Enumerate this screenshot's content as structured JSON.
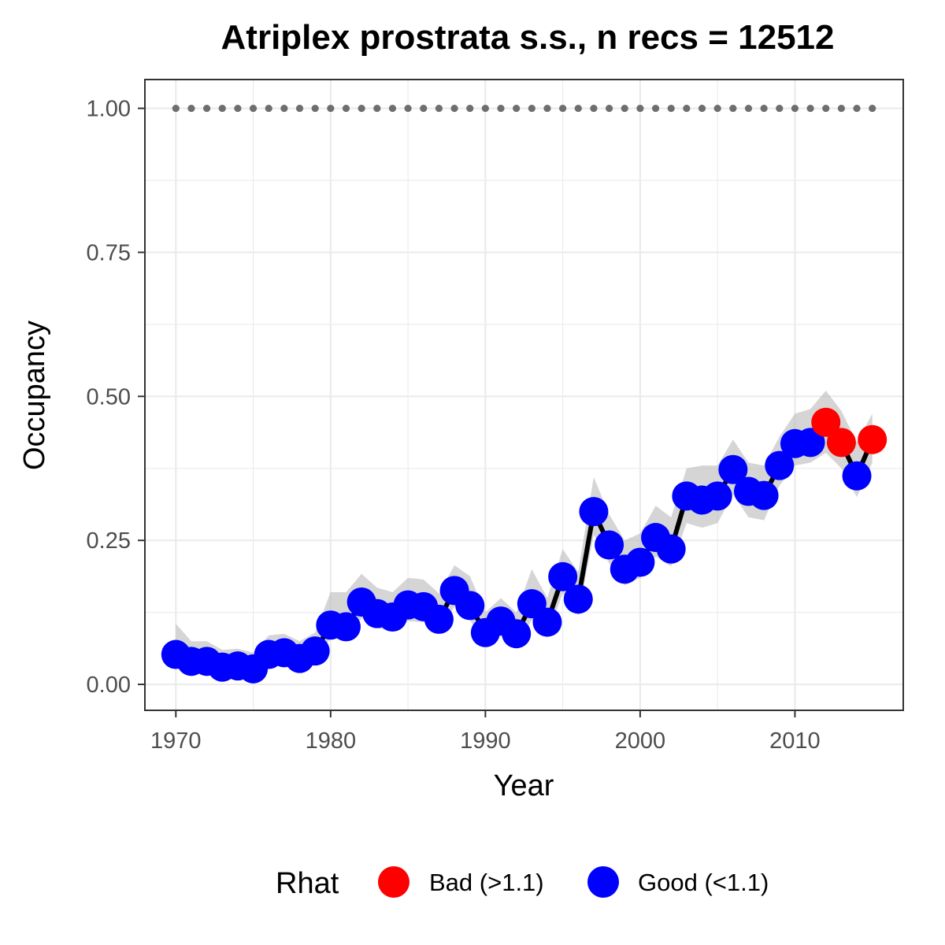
{
  "chart_data": {
    "type": "line",
    "title": "Atriplex prostrata s.s., n recs = 12512",
    "xlabel": "Year",
    "ylabel": "Occupancy",
    "xlim": [
      1968,
      2017
    ],
    "ylim": [
      -0.045,
      1.05
    ],
    "x_ticks": [
      1970,
      1980,
      1990,
      2000,
      2010
    ],
    "y_ticks": [
      0,
      0.25,
      0.5,
      0.75,
      1
    ],
    "x_tick_labels": [
      "1970",
      "1980",
      "1990",
      "2000",
      "2010"
    ],
    "y_tick_labels": [
      "0.00",
      "0.25",
      "0.50",
      "0.75",
      "1.00"
    ],
    "grid": true,
    "legend_position": "bottom",
    "legend": {
      "title": "Rhat",
      "entries": [
        {
          "label": "Bad (>1.1)",
          "color": "#ff0000"
        },
        {
          "label": "Good (<1.1)",
          "color": "#0000ff"
        }
      ]
    },
    "colors": {
      "bad": "#ff0000",
      "good": "#0000ff",
      "line": "#000000",
      "ribbon": "#bebebe",
      "reference": "#6e6e6e",
      "grid": "#ebebeb",
      "panel_border": "#333333"
    },
    "reference_line": {
      "y": 1.0,
      "style": "dotted"
    },
    "series": [
      {
        "x": [
          1970,
          1971,
          1972,
          1973,
          1974,
          1975,
          1976,
          1977,
          1978,
          1979,
          1980,
          1981,
          1982,
          1983,
          1984,
          1985,
          1986,
          1987,
          1988,
          1989,
          1990,
          1991,
          1992,
          1993,
          1994,
          1995,
          1996,
          1997,
          1998,
          1999,
          2000,
          2001,
          2002,
          2003,
          2004,
          2005,
          2006,
          2007,
          2008,
          2009,
          2010,
          2011,
          2012,
          2013,
          2014,
          2015
        ],
        "y": [
          0.052,
          0.04,
          0.04,
          0.03,
          0.032,
          0.027,
          0.052,
          0.055,
          0.045,
          0.058,
          0.103,
          0.1,
          0.143,
          0.123,
          0.117,
          0.138,
          0.135,
          0.113,
          0.163,
          0.137,
          0.09,
          0.11,
          0.088,
          0.14,
          0.108,
          0.187,
          0.148,
          0.3,
          0.242,
          0.2,
          0.212,
          0.255,
          0.235,
          0.327,
          0.32,
          0.327,
          0.373,
          0.335,
          0.328,
          0.38,
          0.418,
          0.42,
          0.455,
          0.42,
          0.362,
          0.425
        ],
        "lower": [
          0.03,
          0.03,
          0.03,
          0.022,
          0.024,
          0.02,
          0.04,
          0.042,
          0.034,
          0.042,
          0.08,
          0.078,
          0.115,
          0.098,
          0.092,
          0.11,
          0.108,
          0.09,
          0.135,
          0.112,
          0.07,
          0.088,
          0.068,
          0.112,
          0.086,
          0.158,
          0.12,
          0.26,
          0.21,
          0.172,
          0.185,
          0.222,
          0.205,
          0.28,
          0.272,
          0.28,
          0.33,
          0.29,
          0.285,
          0.345,
          0.38,
          0.385,
          0.402,
          0.375,
          0.325,
          0.385
        ],
        "upper": [
          0.105,
          0.075,
          0.075,
          0.06,
          0.062,
          0.055,
          0.085,
          0.088,
          0.075,
          0.09,
          0.16,
          0.16,
          0.192,
          0.168,
          0.16,
          0.185,
          0.182,
          0.158,
          0.207,
          0.188,
          0.125,
          0.15,
          0.125,
          0.2,
          0.15,
          0.235,
          0.195,
          0.36,
          0.295,
          0.25,
          0.262,
          0.31,
          0.29,
          0.375,
          0.38,
          0.38,
          0.425,
          0.385,
          0.38,
          0.43,
          0.47,
          0.478,
          0.51,
          0.475,
          0.42,
          0.47
        ],
        "rhat": [
          "Good",
          "Good",
          "Good",
          "Good",
          "Good",
          "Good",
          "Good",
          "Good",
          "Good",
          "Good",
          "Good",
          "Good",
          "Good",
          "Good",
          "Good",
          "Good",
          "Good",
          "Good",
          "Good",
          "Good",
          "Good",
          "Good",
          "Good",
          "Good",
          "Good",
          "Good",
          "Good",
          "Good",
          "Good",
          "Good",
          "Good",
          "Good",
          "Good",
          "Good",
          "Good",
          "Good",
          "Good",
          "Good",
          "Good",
          "Good",
          "Good",
          "Good",
          "Bad",
          "Bad",
          "Good",
          "Bad"
        ]
      }
    ]
  }
}
